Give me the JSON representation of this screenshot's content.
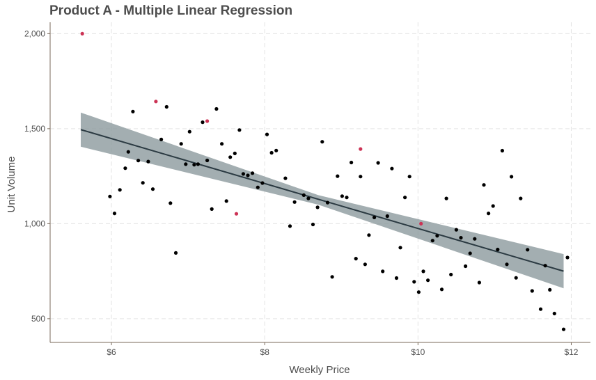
{
  "chart_data": {
    "type": "scatter",
    "title": "Product A - Multiple Linear Regression",
    "xlabel": "Weekly Price",
    "ylabel": "Unit Volume",
    "xlim": [
      5.2,
      12.25
    ],
    "ylim": [
      375,
      2060
    ],
    "x_ticks": [
      {
        "value": 6,
        "label": "$6"
      },
      {
        "value": 8,
        "label": "$8"
      },
      {
        "value": 10,
        "label": "$10"
      },
      {
        "value": 12,
        "label": "$12"
      }
    ],
    "y_ticks": [
      {
        "value": 500,
        "label": "500"
      },
      {
        "value": 1000,
        "label": "1,000"
      },
      {
        "value": 1500,
        "label": "1,500"
      },
      {
        "value": 2000,
        "label": "2,000"
      }
    ],
    "grid": true,
    "colors": {
      "point": "#000000",
      "highlight": "#cc3355",
      "line": "#2b3a42",
      "band": "#8c9a9e"
    },
    "regression_line": {
      "x": [
        5.6,
        11.9
      ],
      "y": [
        1495,
        750
      ]
    },
    "confidence_band": {
      "x": [
        5.6,
        8.7,
        11.9
      ],
      "upper": [
        1585,
        1150,
        840
      ],
      "lower": [
        1405,
        1100,
        660
      ]
    },
    "series": [
      {
        "role": "observed",
        "points": [
          [
            5.98,
            1143
          ],
          [
            6.04,
            1054
          ],
          [
            6.11,
            1178
          ],
          [
            6.18,
            1292
          ],
          [
            6.22,
            1378
          ],
          [
            6.28,
            1590
          ],
          [
            6.35,
            1332
          ],
          [
            6.41,
            1215
          ],
          [
            6.48,
            1327
          ],
          [
            6.54,
            1182
          ],
          [
            6.65,
            1443
          ],
          [
            6.72,
            1615
          ],
          [
            6.77,
            1108
          ],
          [
            6.84,
            846
          ],
          [
            6.91,
            1420
          ],
          [
            6.97,
            1313
          ],
          [
            7.02,
            1484
          ],
          [
            7.08,
            1310
          ],
          [
            7.13,
            1313
          ],
          [
            7.19,
            1534
          ],
          [
            7.25,
            1333
          ],
          [
            7.31,
            1077
          ],
          [
            7.37,
            1604
          ],
          [
            7.44,
            1420
          ],
          [
            7.5,
            1119
          ],
          [
            7.55,
            1350
          ],
          [
            7.61,
            1370
          ],
          [
            7.67,
            1493
          ],
          [
            7.72,
            1262
          ],
          [
            7.78,
            1254
          ],
          [
            7.84,
            1266
          ],
          [
            7.91,
            1191
          ],
          [
            7.97,
            1214
          ],
          [
            8.03,
            1470
          ],
          [
            8.09,
            1373
          ],
          [
            8.15,
            1385
          ],
          [
            8.27,
            1239
          ],
          [
            8.33,
            987
          ],
          [
            8.39,
            1114
          ],
          [
            8.51,
            1150
          ],
          [
            8.57,
            1133
          ],
          [
            8.63,
            996
          ],
          [
            8.69,
            1086
          ],
          [
            8.75,
            1431
          ],
          [
            8.82,
            1111
          ],
          [
            8.88,
            720
          ],
          [
            8.95,
            1250
          ],
          [
            9.01,
            1145
          ],
          [
            9.07,
            1138
          ],
          [
            9.13,
            1322
          ],
          [
            9.19,
            816
          ],
          [
            9.25,
            1248
          ],
          [
            9.31,
            786
          ],
          [
            9.36,
            940
          ],
          [
            9.43,
            1033
          ],
          [
            9.48,
            1320
          ],
          [
            9.54,
            749
          ],
          [
            9.6,
            1040
          ],
          [
            9.66,
            1290
          ],
          [
            9.72,
            714
          ],
          [
            9.77,
            874
          ],
          [
            9.83,
            1138
          ],
          [
            9.89,
            1248
          ],
          [
            9.95,
            694
          ],
          [
            10.01,
            640
          ],
          [
            10.07,
            749
          ],
          [
            10.13,
            702
          ],
          [
            10.19,
            911
          ],
          [
            10.25,
            936
          ],
          [
            10.31,
            654
          ],
          [
            10.37,
            1133
          ],
          [
            10.43,
            732
          ],
          [
            10.5,
            968
          ],
          [
            10.56,
            926
          ],
          [
            10.62,
            776
          ],
          [
            10.68,
            844
          ],
          [
            10.74,
            920
          ],
          [
            10.8,
            690
          ],
          [
            10.86,
            1204
          ],
          [
            10.92,
            1054
          ],
          [
            10.98,
            1093
          ],
          [
            11.04,
            864
          ],
          [
            11.1,
            1384
          ],
          [
            11.16,
            786
          ],
          [
            11.22,
            1247
          ],
          [
            11.28,
            715
          ],
          [
            11.34,
            1133
          ],
          [
            11.43,
            863
          ],
          [
            11.49,
            646
          ],
          [
            11.6,
            550
          ],
          [
            11.66,
            779
          ],
          [
            11.72,
            652
          ],
          [
            11.78,
            527
          ],
          [
            11.9,
            444
          ],
          [
            11.95,
            822
          ]
        ]
      },
      {
        "role": "highlighted",
        "points": [
          [
            5.62,
            2000
          ],
          [
            6.58,
            1643
          ],
          [
            7.25,
            1540
          ],
          [
            7.63,
            1052
          ],
          [
            9.25,
            1393
          ],
          [
            10.04,
            1000
          ]
        ]
      }
    ]
  }
}
